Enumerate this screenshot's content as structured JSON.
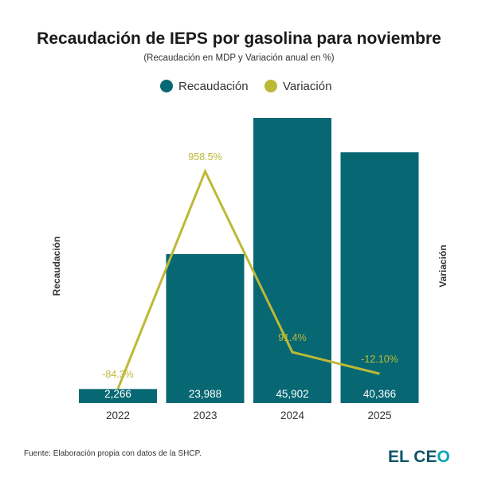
{
  "chart_data": {
    "type": "bar",
    "title": "Recaudación de IEPS por gasolina para noviembre",
    "subtitle": "(Recaudación en MDP y Variación anual en %)",
    "categories": [
      "2022",
      "2023",
      "2024",
      "2025"
    ],
    "series": [
      {
        "name": "Recaudación",
        "type": "bar",
        "axis": "left",
        "color": "#076873",
        "values": [
          2266,
          23988,
          45902,
          40366
        ],
        "labels": [
          "2,266",
          "23,988",
          "45,902",
          "40,366"
        ]
      },
      {
        "name": "Variación",
        "type": "line",
        "axis": "right",
        "color": "#bdb936",
        "values": [
          -84.3,
          958.5,
          91.4,
          -12.1
        ],
        "labels": [
          "-84.3%",
          "958.5%",
          "91.4%",
          "-12.10%"
        ]
      }
    ],
    "ylabel": "Recaudación",
    "y2label": "Variación",
    "ylim": [
      0,
      45902
    ],
    "y2lim": [
      -153,
      1215
    ],
    "grid": false,
    "legend_position": "top-center"
  },
  "footer": {
    "source": "Fuente: Elaboración propia con datos de la SHCP.",
    "logo": "EL CEO"
  }
}
